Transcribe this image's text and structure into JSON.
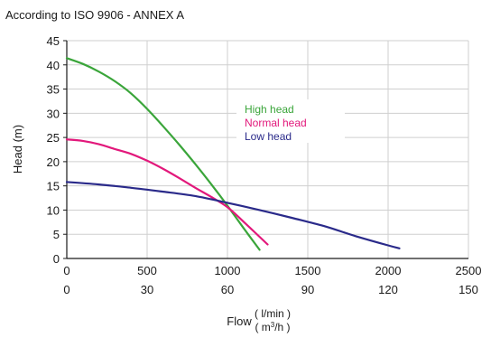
{
  "chart_data": {
    "type": "line",
    "subtitle": "According to ISO 9906 - ANNEX A",
    "xlabel": "Flow",
    "x_unit_primary": "( l/min )",
    "x_unit_secondary_base": "( m",
    "x_unit_secondary_sup": "3",
    "x_unit_secondary_tail": "/h )",
    "ylabel": "Head (m)",
    "xlim": [
      0,
      2500
    ],
    "ylim": [
      0,
      45
    ],
    "x_ticks": [
      0,
      500,
      1000,
      1500,
      2000,
      2500
    ],
    "x_ticks_secondary": [
      0,
      30,
      60,
      90,
      120,
      150
    ],
    "y_ticks": [
      0,
      5,
      10,
      15,
      20,
      25,
      30,
      35,
      40,
      45
    ],
    "grid": true,
    "legend_position": "upper-middle",
    "series": [
      {
        "name": "High head",
        "color": "#3aa53a",
        "x": [
          0,
          100,
          200,
          300,
          400,
          500,
          600,
          700,
          800,
          900,
          1000,
          1100,
          1200
        ],
        "y": [
          41.4,
          40.2,
          38.6,
          36.6,
          34.1,
          30.9,
          27.3,
          23.5,
          19.5,
          15.3,
          10.9,
          6.3,
          1.8
        ]
      },
      {
        "name": "Normal head",
        "color": "#e2187b",
        "x": [
          0,
          100,
          200,
          300,
          400,
          500,
          600,
          700,
          800,
          900,
          1000,
          1100,
          1250
        ],
        "y": [
          24.6,
          24.3,
          23.6,
          22.6,
          21.6,
          20.2,
          18.5,
          16.6,
          14.6,
          12.7,
          10.6,
          7.6,
          2.9
        ]
      },
      {
        "name": "Low head",
        "color": "#2a2a8a",
        "x": [
          0,
          200,
          400,
          600,
          800,
          1000,
          1200,
          1400,
          1600,
          1800,
          2000,
          2070
        ],
        "y": [
          15.8,
          15.3,
          14.6,
          13.8,
          12.9,
          11.5,
          10.0,
          8.4,
          6.7,
          4.6,
          2.7,
          2.1
        ]
      }
    ]
  }
}
